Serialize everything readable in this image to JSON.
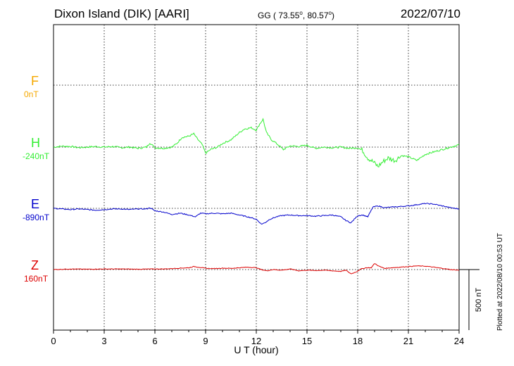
{
  "header": {
    "title": "Dixon Island (DIK)  [AARI]",
    "coords_prefix": "GG ( 73.55",
    "coords_mid": ",  80.57",
    "coords_suffix": ")",
    "degree_mark": "o",
    "date": "2022/07/10"
  },
  "plotted_note": "Plotted at 2022/08/10 00:53 UT",
  "colors": {
    "F": "#f5a800",
    "H": "#33ee33",
    "E": "#0000cc",
    "Z": "#dd0000"
  },
  "chart_data": {
    "type": "line",
    "xlabel": "U T (hour)",
    "xlim": [
      0,
      24
    ],
    "x_ticks": [
      "0",
      "3",
      "6",
      "9",
      "12",
      "15",
      "18",
      "21",
      "24"
    ],
    "grid": true,
    "scale_bar": "500 nT",
    "series": [
      {
        "name": "F",
        "baseline": "0nT",
        "values": []
      },
      {
        "name": "H",
        "baseline": "-240nT",
        "x": [
          0,
          0.5,
          1,
          1.5,
          2,
          2.5,
          3,
          3.5,
          4,
          4.5,
          5,
          5.5,
          5.7,
          6,
          6.5,
          7,
          7.3,
          7.6,
          8,
          8.3,
          8.5,
          8.8,
          9,
          9.3,
          9.7,
          10,
          10.5,
          11,
          11.3,
          11.7,
          12,
          12.2,
          12.4,
          12.6,
          12.9,
          13.2,
          13.6,
          14,
          14.5,
          15,
          15.5,
          16,
          16.5,
          17,
          17.5,
          18,
          18.3,
          18.6,
          18.9,
          19.2,
          19.5,
          19.8,
          20.2,
          20.6,
          21,
          21.5,
          22,
          22.5,
          23,
          23.5,
          24
        ],
        "values": [
          0,
          8,
          5,
          -5,
          0,
          5,
          0,
          5,
          -5,
          0,
          -10,
          0,
          35,
          -5,
          -10,
          0,
          30,
          80,
          90,
          110,
          70,
          20,
          -50,
          -20,
          0,
          30,
          60,
          120,
          150,
          160,
          140,
          190,
          230,
          120,
          60,
          30,
          -20,
          10,
          5,
          15,
          -10,
          0,
          -5,
          0,
          -10,
          -5,
          -30,
          -90,
          -120,
          -160,
          -120,
          -90,
          -110,
          -70,
          -80,
          -110,
          -60,
          -40,
          -20,
          0,
          20
        ]
      },
      {
        "name": "E",
        "baseline": "-890nT",
        "x": [
          0,
          0.5,
          1,
          1.5,
          2,
          2.5,
          3,
          3.5,
          4,
          4.5,
          5,
          5.5,
          5.7,
          6,
          6.5,
          7,
          7.5,
          8,
          8.4,
          8.7,
          9,
          9.5,
          10,
          10.5,
          11,
          11.5,
          12,
          12.3,
          12.5,
          12.8,
          13.2,
          13.5,
          14,
          14.5,
          15,
          15.5,
          16,
          16.5,
          17,
          17.3,
          17.6,
          18,
          18.3,
          18.6,
          18.9,
          19.2,
          19.6,
          20,
          20.5,
          21,
          21.5,
          22,
          22.5,
          23,
          23.5,
          24
        ],
        "values": [
          0,
          -5,
          -10,
          -5,
          -10,
          -15,
          -10,
          -5,
          -5,
          -10,
          -5,
          -5,
          5,
          -20,
          -30,
          -50,
          -40,
          -55,
          -70,
          -40,
          -45,
          -40,
          -45,
          -40,
          -55,
          -70,
          -90,
          -130,
          -120,
          -90,
          -70,
          -60,
          -55,
          -60,
          -60,
          -65,
          -60,
          -55,
          -70,
          -100,
          -120,
          -60,
          -55,
          -70,
          10,
          20,
          5,
          10,
          15,
          20,
          30,
          40,
          35,
          20,
          5,
          -5
        ]
      },
      {
        "name": "Z",
        "baseline": "160nT",
        "x": [
          0,
          1,
          2,
          3,
          4,
          5,
          6,
          6.5,
          7,
          7.5,
          8,
          8.3,
          8.6,
          9,
          9.5,
          10,
          10.5,
          11,
          11.5,
          12,
          12.3,
          12.6,
          13,
          13.5,
          14,
          14.5,
          15,
          15.5,
          16,
          16.5,
          17,
          17.3,
          17.6,
          17.9,
          18.2,
          18.5,
          18.8,
          19,
          19.3,
          19.6,
          20,
          20.5,
          21,
          21.5,
          22,
          22.5,
          23,
          23.5,
          24
        ],
        "values": [
          0,
          5,
          3,
          5,
          5,
          3,
          5,
          5,
          8,
          12,
          15,
          25,
          20,
          10,
          8,
          12,
          10,
          15,
          20,
          15,
          0,
          -10,
          0,
          -5,
          5,
          -10,
          -5,
          -8,
          -5,
          -10,
          -15,
          -5,
          -35,
          -20,
          5,
          15,
          15,
          50,
          25,
          10,
          15,
          20,
          25,
          30,
          28,
          20,
          10,
          0,
          -5
        ]
      }
    ]
  }
}
